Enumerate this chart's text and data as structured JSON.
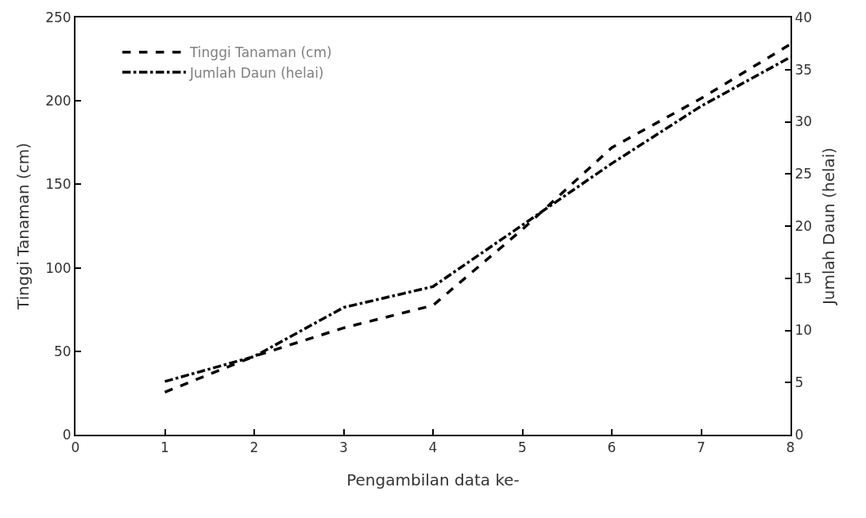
{
  "chart_data": {
    "type": "line",
    "xlabel": "Pengambilan data ke-",
    "ylabel": "Tinggi Tanaman (cm)",
    "y2label": "Jumlah Daun (helai)",
    "x": [
      1,
      2,
      3,
      4,
      5,
      6,
      7,
      8
    ],
    "series": [
      {
        "name": "Tinggi Tanaman (cm)",
        "color": "#000000",
        "line_style": "dashed",
        "values": [
          25.5,
          47,
          64,
          77.5,
          123,
          172,
          201.5,
          234
        ]
      },
      {
        "name": "Jumlah Daun (helai)",
        "color": "#000000",
        "line_style": "dashdot",
        "axis": "y2",
        "values": [
          5.1,
          7.5,
          12.2,
          14.2,
          20.1,
          26,
          31.5,
          36.2
        ]
      }
    ],
    "xlim": [
      0,
      8
    ],
    "xticks": [
      0,
      1,
      2,
      3,
      4,
      5,
      6,
      7,
      8
    ],
    "ylim": [
      0,
      250
    ],
    "yticks": [
      0,
      50,
      100,
      150,
      200,
      250
    ],
    "y2lim": [
      0,
      40
    ],
    "y2ticks": [
      0,
      5,
      10,
      15,
      20,
      25,
      30,
      35,
      40
    ],
    "legend": "top left",
    "marker": "none"
  }
}
